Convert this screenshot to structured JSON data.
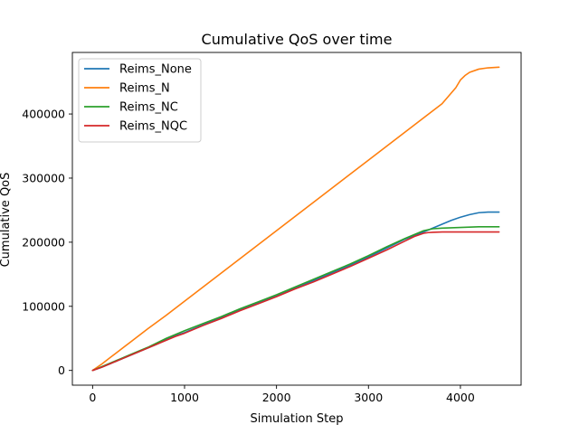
{
  "chart_data": {
    "type": "line",
    "title": "Cumulative QoS over time",
    "xlabel": "Simulation Step",
    "ylabel": "Cumulative QoS",
    "xlim": [
      -220,
      4660
    ],
    "ylim": [
      -23000,
      496000
    ],
    "xticks": [
      0,
      1000,
      2000,
      3000,
      4000
    ],
    "xtick_labels": [
      "0",
      "1000",
      "2000",
      "3000",
      "4000"
    ],
    "yticks": [
      0,
      100000,
      200000,
      300000,
      400000
    ],
    "ytick_labels": [
      "0",
      "100000",
      "200000",
      "300000",
      "400000"
    ],
    "grid": false,
    "legend_position": "top-left",
    "series": [
      {
        "name": "Reims_None",
        "color": "#1f77b4",
        "x": [
          0,
          100,
          200,
          300,
          400,
          500,
          600,
          700,
          800,
          900,
          1000,
          1200,
          1400,
          1600,
          1800,
          2000,
          2200,
          2400,
          2600,
          2800,
          3000,
          3200,
          3400,
          3600,
          3700,
          3800,
          3900,
          4000,
          4100,
          4200,
          4300,
          4400,
          4420
        ],
        "y": [
          0,
          5000,
          11000,
          17000,
          23000,
          29000,
          35000,
          41000,
          48000,
          54000,
          59000,
          71000,
          82000,
          94000,
          105000,
          116000,
          128000,
          140000,
          152000,
          164000,
          177000,
          191000,
          205000,
          216000,
          222000,
          228000,
          234000,
          239000,
          243000,
          246000,
          247000,
          247000,
          247000
        ]
      },
      {
        "name": "Reims_N",
        "color": "#ff7f0e",
        "x": [
          0,
          100,
          200,
          400,
          600,
          800,
          1000,
          1500,
          2000,
          2500,
          3000,
          3500,
          3800,
          3950,
          4000,
          4050,
          4100,
          4200,
          4300,
          4420
        ],
        "y": [
          0,
          10000,
          21000,
          43000,
          65000,
          86000,
          108000,
          163000,
          218000,
          273000,
          328000,
          383000,
          416000,
          441000,
          453000,
          460000,
          465000,
          470000,
          472000,
          473000
        ]
      },
      {
        "name": "Reims_NC",
        "color": "#2ca02c",
        "x": [
          0,
          100,
          200,
          300,
          400,
          500,
          600,
          700,
          800,
          900,
          1000,
          1200,
          1400,
          1600,
          1800,
          2000,
          2200,
          2400,
          2600,
          2800,
          3000,
          3200,
          3400,
          3500,
          3600,
          3700,
          3800,
          4000,
          4200,
          4420
        ],
        "y": [
          0,
          6000,
          12000,
          18000,
          24000,
          30000,
          36000,
          43000,
          50000,
          56000,
          62000,
          73000,
          84000,
          96000,
          107000,
          118000,
          130000,
          142000,
          154000,
          166000,
          179000,
          193000,
          206000,
          212000,
          218000,
          221000,
          222000,
          223000,
          224000,
          224000
        ]
      },
      {
        "name": "Reims_NQC",
        "color": "#d62728",
        "x": [
          0,
          100,
          200,
          300,
          400,
          500,
          600,
          700,
          800,
          900,
          1000,
          1200,
          1400,
          1600,
          1800,
          2000,
          2200,
          2400,
          2600,
          2800,
          3000,
          3200,
          3400,
          3500,
          3600,
          3650,
          3700,
          3800,
          4000,
          4420
        ],
        "y": [
          0,
          5000,
          11000,
          17000,
          23000,
          29000,
          35000,
          41000,
          47000,
          53000,
          58000,
          70000,
          81000,
          93000,
          104000,
          115000,
          127000,
          138000,
          150000,
          162000,
          175000,
          188000,
          202000,
          209000,
          214000,
          215000,
          215500,
          216000,
          216000,
          216000
        ]
      }
    ]
  }
}
